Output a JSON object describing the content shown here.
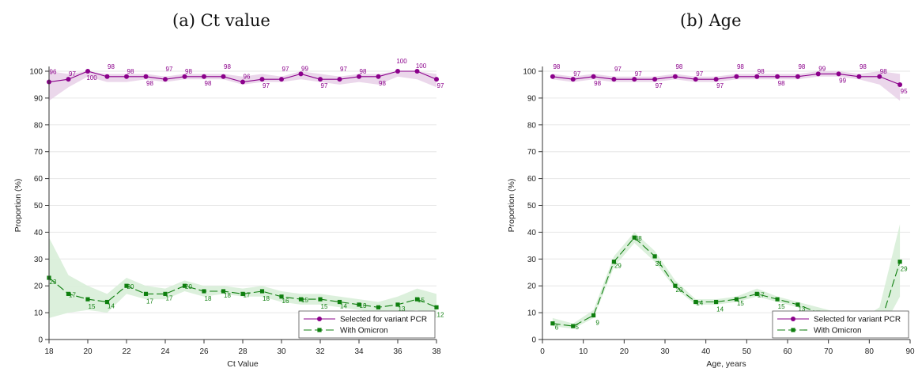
{
  "captions": [
    "(a) Ct value",
    "(b) Age"
  ],
  "colors": {
    "purple": "#8b008b",
    "green": "#0f7f0f",
    "purple_band": "#e9d3e9",
    "green_band": "#d8eed8"
  },
  "chart_data": [
    {
      "type": "line",
      "title": "(a) Ct value",
      "xlabel": "Ct Value",
      "ylabel": "Proportion (%)",
      "xlim": [
        18,
        38
      ],
      "ylim": [
        0,
        100
      ],
      "xticks": [
        18,
        20,
        22,
        24,
        26,
        28,
        30,
        32,
        34,
        36,
        38
      ],
      "yticks": [
        0,
        10,
        20,
        30,
        40,
        50,
        60,
        70,
        80,
        90,
        100
      ],
      "grid": "horizontal",
      "legend": "bottom-right",
      "series": [
        {
          "name": "Selected for variant PCR",
          "x": [
            18,
            19,
            20,
            21,
            22,
            23,
            24,
            25,
            26,
            27,
            28,
            29,
            30,
            31,
            32,
            33,
            34,
            35,
            36,
            37,
            38
          ],
          "values": [
            96,
            97,
            100,
            98,
            98,
            98,
            97,
            98,
            98,
            98,
            96,
            97,
            97,
            99,
            97,
            97,
            98,
            98,
            100,
            100,
            97
          ],
          "labels": [
            "96",
            "97",
            "100",
            "98",
            "98",
            "98",
            "97",
            "98",
            "98",
            "98",
            "96",
            "97",
            "97",
            "99",
            "97",
            "97",
            "98",
            "98",
            "100",
            "100",
            "97"
          ],
          "ci_lower": [
            89,
            94,
            98,
            96,
            96,
            97,
            96,
            97,
            97,
            97,
            95,
            96,
            96,
            97,
            96,
            95,
            96,
            95,
            98,
            97,
            94
          ],
          "ci_upper": [
            100,
            99,
            100,
            99,
            99,
            99,
            98,
            99,
            99,
            99,
            98,
            99,
            98,
            100,
            99,
            98,
            99,
            99,
            100,
            100,
            99
          ]
        },
        {
          "name": "With Omicron",
          "x": [
            18,
            19,
            20,
            21,
            22,
            23,
            24,
            25,
            26,
            27,
            28,
            29,
            30,
            31,
            32,
            33,
            34,
            35,
            36,
            37,
            38
          ],
          "values": [
            23,
            17,
            15,
            14,
            20,
            17,
            17,
            20,
            18,
            18,
            17,
            18,
            16,
            15,
            15,
            14,
            13,
            12,
            13,
            15,
            12
          ],
          "labels": [
            "23",
            "17",
            "15",
            "14",
            "20",
            "17",
            "17",
            "20",
            "18",
            "18",
            "17",
            "18",
            "16",
            "15",
            "15",
            "14",
            "13",
            "12",
            "13",
            "15",
            "12"
          ],
          "ci_lower": [
            8,
            10,
            11,
            10,
            17,
            15,
            15,
            18,
            16,
            17,
            16,
            16,
            14,
            13,
            13,
            12,
            11,
            10,
            10,
            11,
            8
          ],
          "ci_upper": [
            38,
            24,
            20,
            17,
            23,
            20,
            19,
            22,
            20,
            20,
            19,
            20,
            18,
            17,
            17,
            16,
            15,
            14,
            16,
            19,
            17
          ]
        }
      ]
    },
    {
      "type": "line",
      "title": "(b) Age",
      "xlabel": "Age, years",
      "ylabel": "Proportion (%)",
      "xlim": [
        0,
        90
      ],
      "ylim": [
        0,
        100
      ],
      "xticks": [
        0,
        10,
        20,
        30,
        40,
        50,
        60,
        70,
        80,
        90
      ],
      "yticks": [
        0,
        10,
        20,
        30,
        40,
        50,
        60,
        70,
        80,
        90,
        100
      ],
      "grid": "horizontal",
      "legend": "bottom-right",
      "series": [
        {
          "name": "Selected for variant PCR",
          "x": [
            2.5,
            7.5,
            12.5,
            17.5,
            22.5,
            27.5,
            32.5,
            37.5,
            42.5,
            47.5,
            52.5,
            57.5,
            62.5,
            67.5,
            72.5,
            77.5,
            82.5,
            87.5
          ],
          "values": [
            98,
            97,
            98,
            97,
            97,
            97,
            98,
            97,
            97,
            98,
            98,
            98,
            98,
            99,
            99,
            98,
            98,
            95
          ],
          "labels": [
            "98",
            "97",
            "98",
            "97",
            "97",
            "97",
            "98",
            "97",
            "97",
            "98",
            "98",
            "98",
            "98",
            "99",
            "99",
            "98",
            "98",
            "95"
          ],
          "ci_lower": [
            97,
            96,
            97,
            96,
            96,
            96,
            97,
            96,
            96,
            97,
            97,
            97,
            97,
            98,
            98,
            97,
            95,
            89
          ],
          "ci_upper": [
            99,
            98,
            99,
            98,
            98,
            98,
            99,
            98,
            98,
            99,
            99,
            99,
            99,
            100,
            100,
            99,
            100,
            99
          ]
        },
        {
          "name": "With Omicron",
          "x": [
            2.5,
            7.5,
            12.5,
            17.5,
            22.5,
            27.5,
            32.5,
            37.5,
            42.5,
            47.5,
            52.5,
            57.5,
            62.5,
            67.5,
            72.5,
            77.5,
            82.5,
            87.5
          ],
          "values": [
            6,
            5,
            9,
            29,
            38,
            31,
            20,
            14,
            14,
            15,
            17,
            15,
            13,
            10,
            9,
            5,
            5,
            29
          ],
          "labels": [
            "6",
            "5",
            "9",
            "29",
            "38",
            "31",
            "20",
            "14",
            "14",
            "15",
            "17",
            "15",
            "13",
            "10",
            "9",
            "5",
            "5",
            "29"
          ],
          "ci_lower": [
            5,
            4,
            8,
            27,
            36,
            29,
            19,
            13,
            13,
            14,
            16,
            14,
            12,
            9,
            8,
            4,
            2,
            16
          ],
          "ci_upper": [
            8,
            6,
            11,
            31,
            40,
            33,
            22,
            15,
            15,
            16,
            19,
            16,
            14,
            12,
            10,
            7,
            12,
            43
          ]
        }
      ]
    }
  ]
}
